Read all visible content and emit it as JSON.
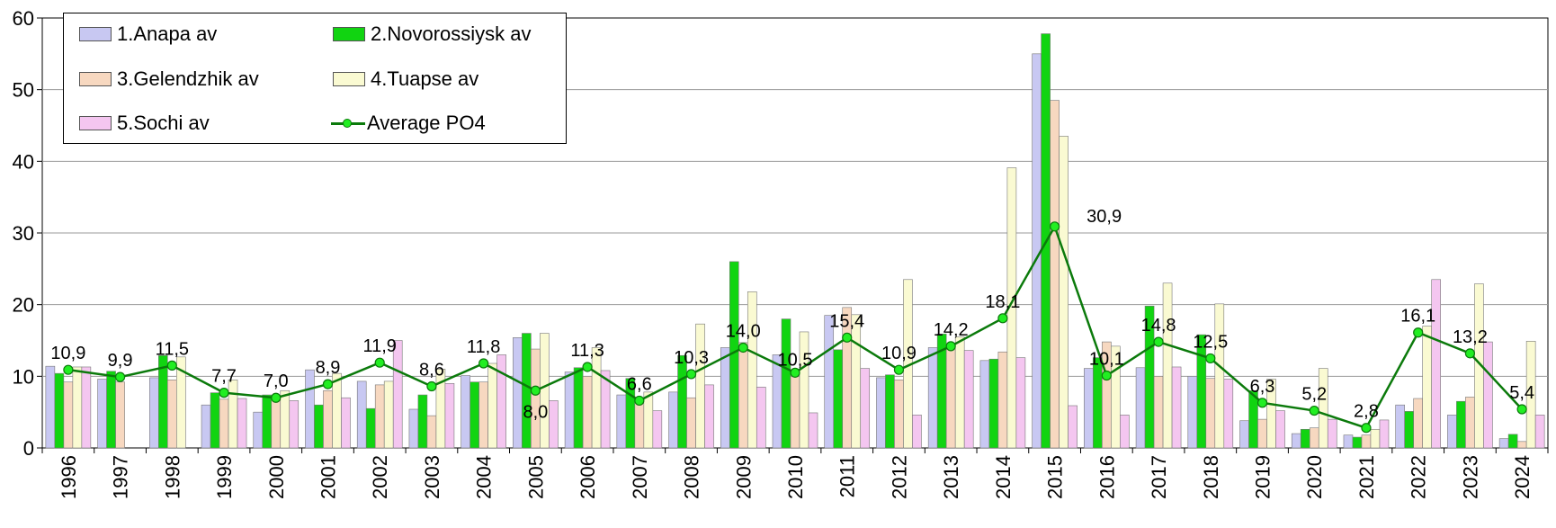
{
  "chart_data": {
    "type": "bar",
    "title": "",
    "xlabel": "",
    "ylabel": "",
    "ylim": [
      0,
      60
    ],
    "yticks": [
      "0",
      "10",
      "20",
      "30",
      "40",
      "50",
      "60"
    ],
    "grid": true,
    "legend_position": "top-left",
    "categories": [
      "1996",
      "1997",
      "1998",
      "1999",
      "2000",
      "2001",
      "2002",
      "2003",
      "2004",
      "2005",
      "2006",
      "2007",
      "2008",
      "2009",
      "2010",
      "2011",
      "2012",
      "2013",
      "2014",
      "2015",
      "2016",
      "2017",
      "2018",
      "2019",
      "2020",
      "2021",
      "2022",
      "2023",
      "2024"
    ],
    "series": [
      {
        "name": "1.Anapa av",
        "color": "#c8c8f2",
        "values": [
          11.4,
          9.6,
          9.8,
          6.0,
          5.0,
          10.9,
          9.3,
          5.4,
          10.1,
          15.4,
          10.6,
          7.4,
          7.8,
          14.0,
          13.0,
          18.5,
          9.8,
          14.0,
          12.2,
          55.0,
          11.1,
          11.2,
          10.0,
          3.8,
          2.0,
          1.8,
          6.0,
          4.6,
          1.3
        ]
      },
      {
        "name": "2.Novorossiysk av",
        "color": "#11d411",
        "values": [
          10.4,
          10.7,
          12.9,
          7.7,
          7.4,
          6.0,
          5.5,
          7.4,
          9.2,
          16.0,
          11.2,
          9.7,
          12.9,
          26.0,
          18.0,
          13.7,
          10.2,
          15.9,
          12.4,
          57.8,
          12.6,
          19.8,
          15.8,
          8.0,
          2.6,
          1.5,
          5.1,
          6.5,
          1.9
        ]
      },
      {
        "name": "3.Gelendzhik av",
        "color": "#f7d8c0",
        "values": [
          9.2,
          9.2,
          9.5,
          6.8,
          6.8,
          8.0,
          8.8,
          4.5,
          9.2,
          13.8,
          10.0,
          6.8,
          7.0,
          14.7,
          10.0,
          19.6,
          9.5,
          13.8,
          13.4,
          48.5,
          14.8,
          10.0,
          9.7,
          4.0,
          2.8,
          1.8,
          6.9,
          7.1,
          0.9
        ]
      },
      {
        "name": "4.Tuapse av",
        "color": "#fafad2",
        "values": [
          11.3,
          0,
          12.7,
          9.5,
          8.0,
          10.4,
          9.3,
          11.0,
          11.8,
          16.0,
          14.0,
          7.8,
          17.3,
          21.8,
          16.2,
          18.6,
          23.5,
          15.5,
          39.1,
          43.5,
          14.2,
          23.0,
          20.1,
          9.6,
          11.1,
          2.6,
          17.0,
          22.9,
          14.9
        ]
      },
      {
        "name": "5.Sochi av",
        "color": "#f4c6f0",
        "values": [
          11.3,
          0,
          0,
          6.9,
          6.6,
          7.0,
          15.0,
          9.0,
          13.0,
          6.6,
          10.8,
          5.2,
          8.8,
          8.5,
          4.9,
          11.1,
          4.6,
          13.6,
          12.6,
          5.9,
          4.6,
          11.3,
          9.6,
          5.2,
          4.0,
          3.9,
          23.5,
          14.8,
          4.6
        ]
      }
    ],
    "line": {
      "name": "Average PO4",
      "color": "#0b7a0b",
      "marker_fill": "#22ee22",
      "values": [
        10.9,
        9.9,
        11.5,
        7.7,
        7.0,
        8.9,
        11.9,
        8.6,
        11.8,
        8.0,
        11.3,
        6.6,
        10.3,
        14.0,
        10.5,
        15.4,
        10.9,
        14.2,
        18.1,
        30.9,
        10.1,
        14.8,
        12.5,
        6.3,
        5.2,
        2.8,
        16.1,
        13.2,
        5.4
      ],
      "labels": [
        "10,9",
        "9,9",
        "11,5",
        "7,7",
        "7,0",
        "8,9",
        "11,9",
        "8,6",
        "11,8",
        "8,0",
        "11,3",
        "6,6",
        "10,3",
        "14,0",
        "10,5",
        "15,4",
        "10,9",
        "14,2",
        "18,1",
        "30,9",
        "10,1",
        "14,8",
        "12,5",
        "6,3",
        "5,2",
        "2,8",
        "16,1",
        "13,2",
        "5,4"
      ]
    }
  }
}
